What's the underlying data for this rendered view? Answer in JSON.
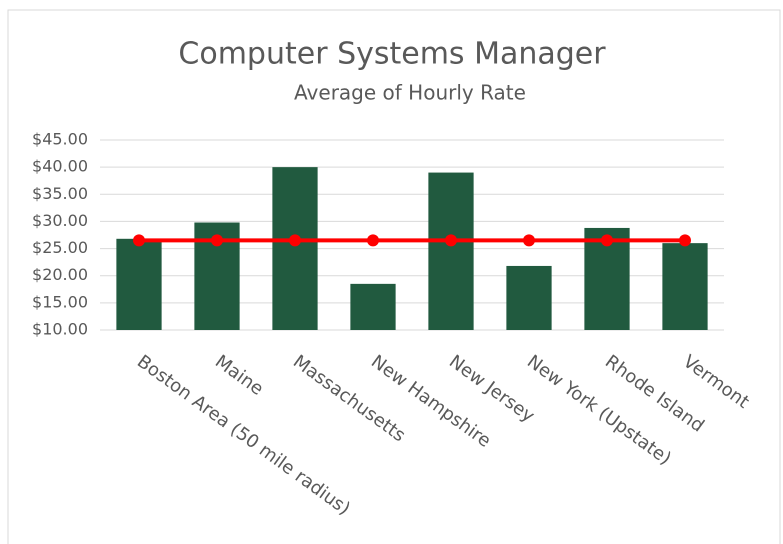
{
  "chart_data": {
    "type": "bar",
    "title": "Computer Systems Manager",
    "subtitle": "Average of Hourly Rate",
    "categories": [
      "Boston Area (50 mile radius)",
      "Maine",
      "Massachusetts",
      "New Hampshire",
      "New Jersey",
      "New York (Upstate)",
      "Rhode Island",
      "Vermont"
    ],
    "series": [
      {
        "type": "bar",
        "color": "#215a3f",
        "values": [
          26.8,
          29.8,
          40.0,
          18.5,
          39.0,
          21.8,
          28.8,
          26.0
        ]
      },
      {
        "type": "line",
        "color": "#ff0000",
        "values": [
          26.5,
          26.5,
          26.5,
          26.5,
          26.5,
          26.5,
          26.5,
          26.5
        ]
      }
    ],
    "ylim": [
      10,
      45
    ],
    "yticks": [
      {
        "value": 10,
        "label": "$10.00"
      },
      {
        "value": 15,
        "label": "$15.00"
      },
      {
        "value": 20,
        "label": "$20.00"
      },
      {
        "value": 25,
        "label": "$25.00"
      },
      {
        "value": 30,
        "label": "$30.00"
      },
      {
        "value": 35,
        "label": "$35.00"
      },
      {
        "value": 40,
        "label": "$40.00"
      },
      {
        "value": 45,
        "label": "$45.00"
      }
    ],
    "grid": true
  }
}
